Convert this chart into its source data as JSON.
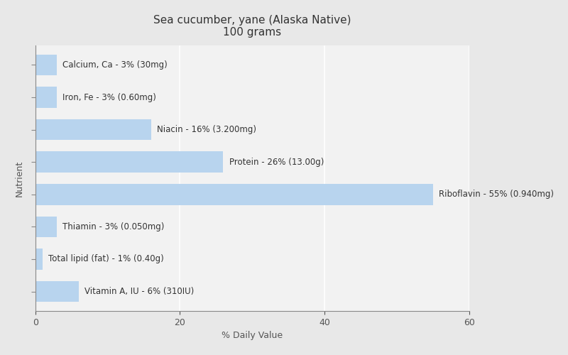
{
  "title_line1": "Sea cucumber, yane (Alaska Native)",
  "title_line2": "100 grams",
  "xlabel": "% Daily Value",
  "ylabel": "Nutrient",
  "background_color": "#e8e8e8",
  "plot_background_color": "#f2f2f2",
  "bar_color": "#b8d4ee",
  "bar_edge_color": "#b8d4ee",
  "label_color": "#333333",
  "label_color_inside": "#333333",
  "nutrients": [
    "Calcium, Ca - 3% (30mg)",
    "Iron, Fe - 3% (0.60mg)",
    "Niacin - 16% (3.200mg)",
    "Protein - 26% (13.00g)",
    "Riboflavin - 55% (0.940mg)",
    "Thiamin - 3% (0.050mg)",
    "Total lipid (fat) - 1% (0.40g)",
    "Vitamin A, IU - 6% (310IU)"
  ],
  "values": [
    3,
    3,
    16,
    26,
    55,
    3,
    1,
    6
  ],
  "xlim": [
    0,
    60
  ],
  "xticks": [
    0,
    20,
    40,
    60
  ],
  "grid_color": "#ffffff",
  "figsize": [
    8.0,
    5.0
  ],
  "dpi": 100,
  "title_fontsize": 11,
  "label_fontsize": 8.5,
  "axis_label_fontsize": 9,
  "tick_fontsize": 9,
  "bar_height": 0.65
}
